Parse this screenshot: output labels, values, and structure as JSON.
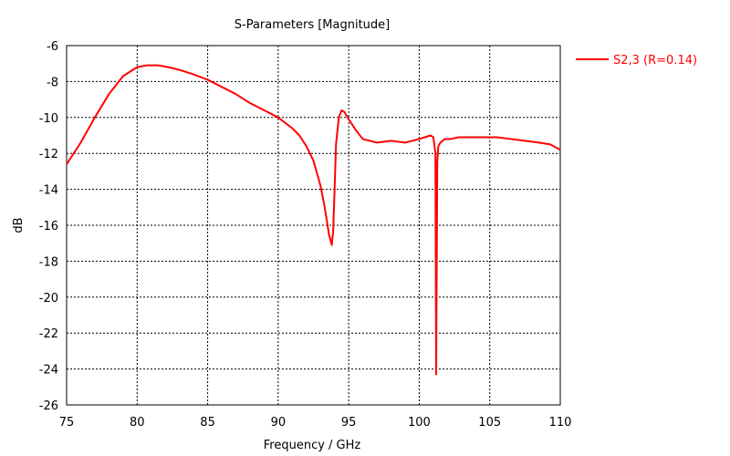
{
  "chart_data": {
    "type": "line",
    "title": "S-Parameters [Magnitude]",
    "xlabel": "Frequency / GHz",
    "ylabel": "dB",
    "xlim": [
      75,
      110
    ],
    "ylim": [
      -26,
      -6
    ],
    "xticks": [
      75,
      80,
      85,
      90,
      95,
      100,
      105,
      110
    ],
    "yticks": [
      -6,
      -8,
      -10,
      -12,
      -14,
      -16,
      -18,
      -20,
      -22,
      -24,
      -26
    ],
    "grid": true,
    "legend_position": "right",
    "series": [
      {
        "name": "S2,3 (R=0.14)",
        "color": "#ff0000",
        "x": [
          75,
          76,
          77,
          78,
          79,
          80,
          80.7,
          81.5,
          82.2,
          83,
          84,
          85,
          86,
          87,
          88,
          89,
          90,
          91,
          91.5,
          92,
          92.5,
          93,
          93.3,
          93.6,
          93.8,
          93.9,
          94.0,
          94.1,
          94.3,
          94.5,
          94.7,
          95.0,
          95.5,
          96,
          97,
          98,
          99,
          100,
          100.8,
          101.0,
          101.15,
          101.2,
          101.28,
          101.35,
          101.5,
          101.8,
          102.2,
          102.8,
          103.5,
          104.5,
          105.5,
          106.5,
          107.5,
          108.5,
          109.3,
          110
        ],
        "y": [
          -12.6,
          -11.4,
          -10.0,
          -8.7,
          -7.7,
          -7.2,
          -7.1,
          -7.1,
          -7.2,
          -7.35,
          -7.6,
          -7.9,
          -8.3,
          -8.7,
          -9.2,
          -9.6,
          -10.0,
          -10.6,
          -11.0,
          -11.6,
          -12.4,
          -13.8,
          -15.0,
          -16.5,
          -17.1,
          -16.3,
          -14.0,
          -11.5,
          -10.0,
          -9.6,
          -9.7,
          -10.1,
          -10.7,
          -11.2,
          -11.4,
          -11.3,
          -11.4,
          -11.2,
          -11.0,
          -11.1,
          -12.0,
          -24.3,
          -12.5,
          -11.6,
          -11.4,
          -11.2,
          -11.2,
          -11.1,
          -11.1,
          -11.1,
          -11.1,
          -11.2,
          -11.3,
          -11.4,
          -11.5,
          -11.8
        ]
      }
    ]
  }
}
